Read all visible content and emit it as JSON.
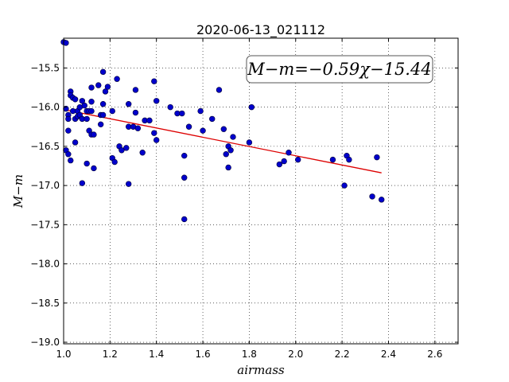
{
  "chart_data": {
    "type": "scatter",
    "title": "2020-06-13_021112",
    "xlabel": "airmass",
    "ylabel": "M−m",
    "annotation": "M−m=−0.59χ−15.44",
    "xlim": [
      1.0,
      2.7
    ],
    "ylim": [
      -19.02,
      -15.12
    ],
    "x_ticks": [
      1.0,
      1.2,
      1.4,
      1.6,
      1.8,
      2.0,
      2.2,
      2.4,
      2.6
    ],
    "x_tick_labels": [
      "1.0",
      "1.2",
      "1.4",
      "1.6",
      "1.8",
      "2.0",
      "2.2",
      "2.4",
      "2.6"
    ],
    "y_ticks": [
      -15.5,
      -16.0,
      -16.5,
      -17.0,
      -17.5,
      -18.0,
      -18.5,
      -19.0
    ],
    "y_tick_labels": [
      "−15.5",
      "−16.0",
      "−16.5",
      "−17.0",
      "−17.5",
      "−18.0",
      "−18.5",
      "−19.0"
    ],
    "grid": true,
    "colors": {
      "points": "#0000cc",
      "points_edge": "#000033",
      "fit": "#dd0000"
    },
    "fit": {
      "slope": -0.59,
      "intercept": -15.44,
      "x_range": [
        1.0,
        2.37
      ]
    },
    "points": [
      [
        1.0,
        -15.17
      ],
      [
        1.01,
        -15.18
      ],
      [
        1.01,
        -16.02
      ],
      [
        1.01,
        -16.55
      ],
      [
        1.02,
        -16.6
      ],
      [
        1.02,
        -16.1
      ],
      [
        1.02,
        -16.15
      ],
      [
        1.02,
        -16.3
      ],
      [
        1.03,
        -15.8
      ],
      [
        1.03,
        -15.85
      ],
      [
        1.03,
        -16.68
      ],
      [
        1.04,
        -15.88
      ],
      [
        1.04,
        -16.05
      ],
      [
        1.05,
        -16.15
      ],
      [
        1.05,
        -16.45
      ],
      [
        1.05,
        -15.9
      ],
      [
        1.06,
        -16.05
      ],
      [
        1.06,
        -16.12
      ],
      [
        1.07,
        -16.0
      ],
      [
        1.07,
        -16.1
      ],
      [
        1.08,
        -15.92
      ],
      [
        1.08,
        -16.15
      ],
      [
        1.08,
        -16.97
      ],
      [
        1.09,
        -15.98
      ],
      [
        1.1,
        -16.05
      ],
      [
        1.1,
        -16.15
      ],
      [
        1.1,
        -16.72
      ],
      [
        1.11,
        -16.05
      ],
      [
        1.11,
        -16.3
      ],
      [
        1.12,
        -15.93
      ],
      [
        1.12,
        -16.05
      ],
      [
        1.12,
        -15.75
      ],
      [
        1.12,
        -16.35
      ],
      [
        1.13,
        -16.35
      ],
      [
        1.13,
        -16.78
      ],
      [
        1.15,
        -15.72
      ],
      [
        1.16,
        -16.1
      ],
      [
        1.16,
        -16.22
      ],
      [
        1.17,
        -15.55
      ],
      [
        1.17,
        -16.1
      ],
      [
        1.17,
        -15.96
      ],
      [
        1.18,
        -15.8
      ],
      [
        1.19,
        -15.74
      ],
      [
        1.21,
        -16.65
      ],
      [
        1.21,
        -16.05
      ],
      [
        1.22,
        -16.7
      ],
      [
        1.23,
        -15.64
      ],
      [
        1.24,
        -16.5
      ],
      [
        1.25,
        -16.55
      ],
      [
        1.27,
        -16.52
      ],
      [
        1.28,
        -15.96
      ],
      [
        1.28,
        -16.25
      ],
      [
        1.28,
        -16.98
      ],
      [
        1.3,
        -16.25
      ],
      [
        1.31,
        -16.07
      ],
      [
        1.31,
        -15.78
      ],
      [
        1.32,
        -16.27
      ],
      [
        1.34,
        -16.58
      ],
      [
        1.35,
        -16.17
      ],
      [
        1.37,
        -16.17
      ],
      [
        1.39,
        -15.67
      ],
      [
        1.39,
        -16.33
      ],
      [
        1.4,
        -15.92
      ],
      [
        1.4,
        -16.42
      ],
      [
        1.46,
        -16.0
      ],
      [
        1.49,
        -16.08
      ],
      [
        1.51,
        -16.08
      ],
      [
        1.52,
        -16.9
      ],
      [
        1.52,
        -16.62
      ],
      [
        1.52,
        -17.43
      ],
      [
        1.54,
        -16.25
      ],
      [
        1.59,
        -16.05
      ],
      [
        1.6,
        -16.3
      ],
      [
        1.64,
        -16.15
      ],
      [
        1.67,
        -15.78
      ],
      [
        1.69,
        -16.28
      ],
      [
        1.7,
        -16.6
      ],
      [
        1.71,
        -16.77
      ],
      [
        1.71,
        -16.5
      ],
      [
        1.72,
        -16.55
      ],
      [
        1.73,
        -16.38
      ],
      [
        1.8,
        -16.45
      ],
      [
        1.81,
        -16.0
      ],
      [
        1.93,
        -16.73
      ],
      [
        1.95,
        -16.69
      ],
      [
        1.97,
        -16.58
      ],
      [
        2.01,
        -16.67
      ],
      [
        2.16,
        -16.67
      ],
      [
        2.21,
        -17.0
      ],
      [
        2.22,
        -16.62
      ],
      [
        2.23,
        -16.67
      ],
      [
        2.33,
        -17.14
      ],
      [
        2.35,
        -16.64
      ],
      [
        2.37,
        -17.18
      ]
    ]
  }
}
